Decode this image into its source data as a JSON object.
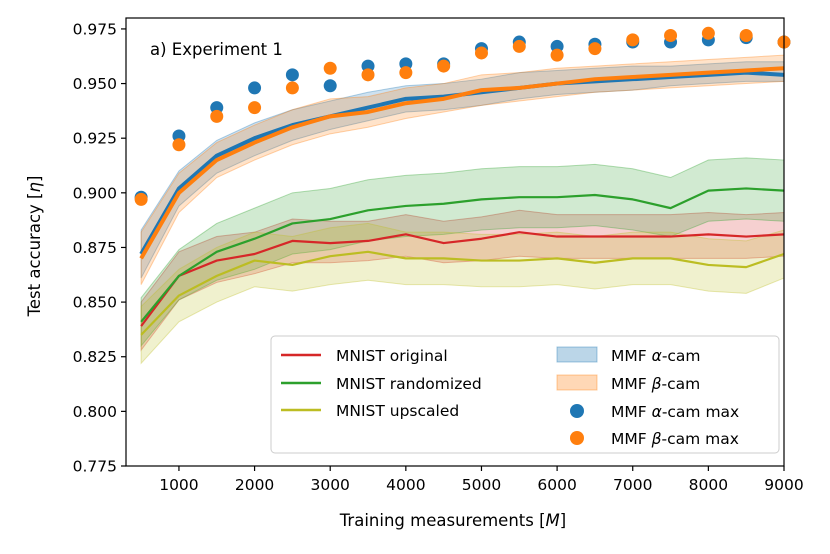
{
  "chart_data": {
    "type": "line",
    "annotation": "a) Experiment 1",
    "xlabel": "Training measurements [",
    "xlabel_var": "M",
    "xlabel_end": "]",
    "ylabel": "Test accuracy [",
    "ylabel_var": "η",
    "ylabel_end": "]",
    "xlim": [
      300,
      9000
    ],
    "ylim": [
      0.775,
      0.98
    ],
    "xticks": [
      1000,
      2000,
      3000,
      4000,
      5000,
      6000,
      7000,
      8000,
      9000
    ],
    "xtick_labels": [
      "1000",
      "2000",
      "3000",
      "4000",
      "5000",
      "6000",
      "7000",
      "8000",
      "9000"
    ],
    "yticks": [
      0.775,
      0.8,
      0.825,
      0.85,
      0.875,
      0.9,
      0.925,
      0.95,
      0.975
    ],
    "ytick_labels": [
      "0.775",
      "0.800",
      "0.825",
      "0.850",
      "0.875",
      "0.900",
      "0.925",
      "0.950",
      "0.975"
    ],
    "x": [
      500,
      1000,
      1500,
      2000,
      2500,
      3000,
      3500,
      4000,
      4500,
      5000,
      5500,
      6000,
      6500,
      7000,
      7500,
      8000,
      8500,
      9000
    ],
    "series": [
      {
        "name": "MNIST original",
        "kind": "line",
        "color": "#d62728",
        "values": [
          0.839,
          0.862,
          0.869,
          0.872,
          0.878,
          0.877,
          0.878,
          0.881,
          0.877,
          0.879,
          0.882,
          0.88,
          0.88,
          0.88,
          0.88,
          0.881,
          0.88,
          0.881
        ],
        "band": {
          "lower": [
            0.828,
            0.851,
            0.859,
            0.863,
            0.868,
            0.868,
            0.869,
            0.871,
            0.868,
            0.869,
            0.871,
            0.87,
            0.87,
            0.87,
            0.87,
            0.87,
            0.87,
            0.871
          ],
          "upper": [
            0.85,
            0.873,
            0.88,
            0.882,
            0.888,
            0.887,
            0.887,
            0.89,
            0.887,
            0.889,
            0.892,
            0.89,
            0.89,
            0.89,
            0.89,
            0.891,
            0.89,
            0.891
          ]
        }
      },
      {
        "name": "MNIST randomized",
        "kind": "line",
        "color": "#2ca02c",
        "values": [
          0.841,
          0.862,
          0.873,
          0.879,
          0.886,
          0.888,
          0.892,
          0.894,
          0.895,
          0.897,
          0.898,
          0.898,
          0.899,
          0.897,
          0.893,
          0.901,
          0.902,
          0.901
        ],
        "band": {
          "lower": [
            0.83,
            0.851,
            0.86,
            0.865,
            0.872,
            0.874,
            0.878,
            0.88,
            0.881,
            0.883,
            0.884,
            0.884,
            0.885,
            0.883,
            0.88,
            0.887,
            0.888,
            0.887
          ],
          "upper": [
            0.852,
            0.874,
            0.886,
            0.893,
            0.9,
            0.902,
            0.906,
            0.908,
            0.909,
            0.911,
            0.912,
            0.912,
            0.913,
            0.911,
            0.907,
            0.915,
            0.916,
            0.915
          ]
        }
      },
      {
        "name": "MNIST upscaled",
        "kind": "line",
        "color": "#bcbd22",
        "values": [
          0.835,
          0.853,
          0.862,
          0.869,
          0.867,
          0.871,
          0.873,
          0.87,
          0.87,
          0.869,
          0.869,
          0.87,
          0.868,
          0.87,
          0.87,
          0.867,
          0.866,
          0.872
        ],
        "band": {
          "lower": [
            0.822,
            0.841,
            0.85,
            0.857,
            0.855,
            0.858,
            0.86,
            0.858,
            0.858,
            0.857,
            0.857,
            0.858,
            0.856,
            0.858,
            0.858,
            0.855,
            0.854,
            0.861
          ],
          "upper": [
            0.848,
            0.865,
            0.875,
            0.882,
            0.88,
            0.884,
            0.886,
            0.882,
            0.882,
            0.881,
            0.881,
            0.882,
            0.88,
            0.882,
            0.882,
            0.879,
            0.878,
            0.883
          ]
        }
      },
      {
        "name": "MMF α-cam",
        "kind": "line",
        "color": "#1f77b4",
        "values": [
          0.872,
          0.902,
          0.917,
          0.925,
          0.931,
          0.935,
          0.939,
          0.943,
          0.944,
          0.946,
          0.948,
          0.95,
          0.951,
          0.952,
          0.953,
          0.954,
          0.955,
          0.954
        ],
        "band": {
          "lower": [
            0.861,
            0.894,
            0.909,
            0.917,
            0.924,
            0.929,
            0.933,
            0.937,
            0.938,
            0.94,
            0.943,
            0.945,
            0.946,
            0.947,
            0.949,
            0.95,
            0.951,
            0.951
          ],
          "upper": [
            0.883,
            0.91,
            0.924,
            0.932,
            0.938,
            0.942,
            0.946,
            0.949,
            0.95,
            0.952,
            0.955,
            0.956,
            0.957,
            0.958,
            0.958,
            0.959,
            0.96,
            0.96
          ]
        }
      },
      {
        "name": "MMF β-cam",
        "kind": "line",
        "color": "#ff7f0e",
        "values": [
          0.87,
          0.9,
          0.915,
          0.923,
          0.93,
          0.935,
          0.937,
          0.941,
          0.943,
          0.947,
          0.948,
          0.95,
          0.952,
          0.953,
          0.954,
          0.955,
          0.956,
          0.957
        ],
        "band": {
          "lower": [
            0.858,
            0.891,
            0.907,
            0.915,
            0.922,
            0.927,
            0.93,
            0.934,
            0.937,
            0.94,
            0.942,
            0.944,
            0.946,
            0.947,
            0.948,
            0.949,
            0.95,
            0.951
          ],
          "upper": [
            0.882,
            0.909,
            0.923,
            0.931,
            0.938,
            0.943,
            0.944,
            0.948,
            0.95,
            0.954,
            0.955,
            0.957,
            0.958,
            0.959,
            0.96,
            0.961,
            0.962,
            0.963
          ]
        }
      },
      {
        "name": "MMF α-cam max",
        "kind": "scatter",
        "color": "#1f77b4",
        "values": [
          0.898,
          0.926,
          0.939,
          0.948,
          0.954,
          0.949,
          0.958,
          0.959,
          0.959,
          0.966,
          0.969,
          0.967,
          0.968,
          0.969,
          0.969,
          0.97,
          0.971,
          0.969
        ]
      },
      {
        "name": "MMF β-cam max",
        "kind": "scatter",
        "color": "#ff7f0e",
        "values": [
          0.897,
          0.922,
          0.935,
          0.939,
          0.948,
          0.957,
          0.954,
          0.955,
          0.958,
          0.964,
          0.967,
          0.963,
          0.966,
          0.97,
          0.972,
          0.973,
          0.972,
          0.969
        ]
      }
    ],
    "legend": {
      "placement": "lower-right",
      "entries": [
        {
          "label": "MNIST original",
          "symbol": "line",
          "color": "#d62728"
        },
        {
          "label": "MNIST randomized",
          "symbol": "line",
          "color": "#2ca02c"
        },
        {
          "label": "MNIST upscaled",
          "symbol": "line",
          "color": "#bcbd22"
        },
        {
          "label_pre": "MMF ",
          "label_var": "α",
          "label_post": "-cam",
          "symbol": "patch",
          "color": "#1f77b4"
        },
        {
          "label_pre": "MMF ",
          "label_var": "β",
          "label_post": "-cam",
          "symbol": "patch",
          "color": "#ff7f0e"
        },
        {
          "label_pre": "MMF ",
          "label_var": "α",
          "label_post": "-cam max",
          "symbol": "dot",
          "color": "#1f77b4"
        },
        {
          "label_pre": "MMF ",
          "label_var": "β",
          "label_post": "-cam max",
          "symbol": "dot",
          "color": "#ff7f0e"
        }
      ]
    }
  }
}
